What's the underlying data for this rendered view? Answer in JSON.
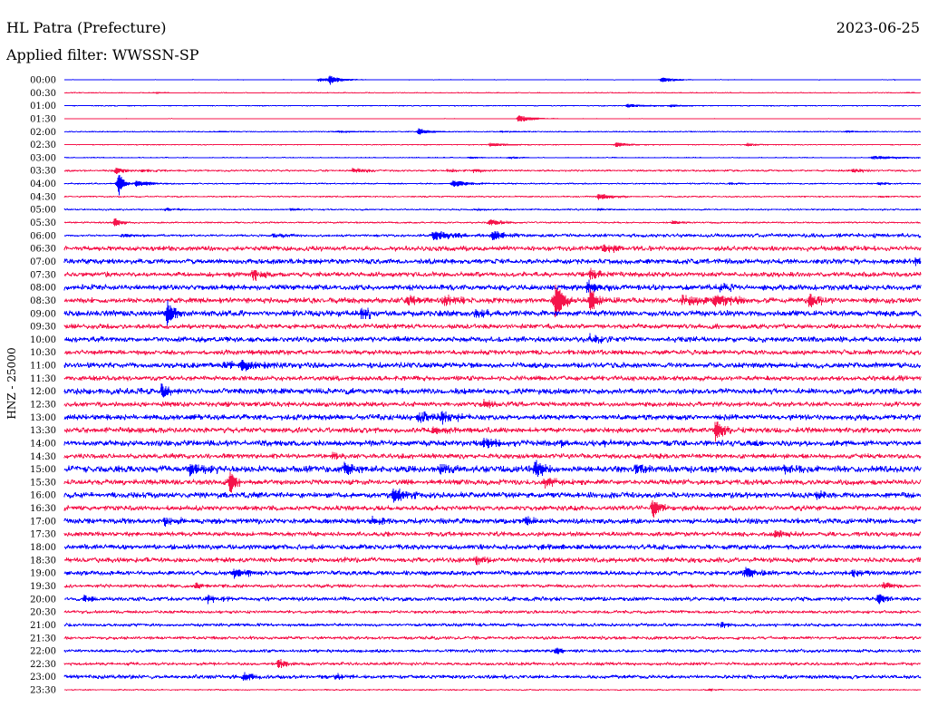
{
  "colors": {
    "trace_even": "#0000ff",
    "trace_odd": "#f5144b"
  },
  "chart_data": {
    "type": "line",
    "title": "HL Patra (Prefecture)",
    "date": "2023-06-25",
    "subtitle": "Applied filter: WWSSN-SP",
    "ylabel": "HNZ - 25000",
    "rows": [
      {
        "time": "00:00",
        "noise": 0.025,
        "events": [
          [
            8.9,
            0.15,
            0.6
          ],
          [
            9.3,
            0.35,
            0.3
          ],
          [
            20.9,
            0.2,
            0.6
          ]
        ]
      },
      {
        "time": "00:30",
        "noise": 0.015,
        "events": [
          [
            3.2,
            0.08,
            0.2
          ],
          [
            29.5,
            0.06,
            0.2
          ]
        ]
      },
      {
        "time": "01:00",
        "noise": 0.025,
        "events": [
          [
            19.7,
            0.15,
            0.8
          ],
          [
            21.2,
            0.1,
            0.4
          ]
        ]
      },
      {
        "time": "01:30",
        "noise": 0.02,
        "events": [
          [
            15.9,
            0.3,
            0.5
          ]
        ]
      },
      {
        "time": "02:00",
        "noise": 0.025,
        "events": [
          [
            5.4,
            0.07,
            0.4
          ],
          [
            9.6,
            0.1,
            0.5
          ],
          [
            12.4,
            0.3,
            0.4
          ],
          [
            15.3,
            0.08,
            0.5
          ],
          [
            27.4,
            0.12,
            0.3
          ]
        ]
      },
      {
        "time": "02:30",
        "noise": 0.03,
        "events": [
          [
            14.9,
            0.15,
            0.8
          ],
          [
            19.3,
            0.2,
            0.5
          ],
          [
            23.9,
            0.15,
            0.4
          ]
        ]
      },
      {
        "time": "03:00",
        "noise": 0.03,
        "events": [
          [
            14.2,
            0.1,
            0.4
          ],
          [
            15.6,
            0.1,
            0.4
          ],
          [
            28.3,
            0.15,
            1.0
          ]
        ]
      },
      {
        "time": "03:30",
        "noise": 0.08,
        "events": [
          [
            1.8,
            0.3,
            0.3
          ],
          [
            2.7,
            0.12,
            0.5
          ],
          [
            10.1,
            0.22,
            0.5
          ],
          [
            13.4,
            0.12,
            0.4
          ],
          [
            14.3,
            0.15,
            0.5
          ],
          [
            27.6,
            0.2,
            0.4
          ]
        ]
      },
      {
        "time": "04:00",
        "noise": 0.05,
        "events": [
          [
            1.9,
            1.1,
            0.15
          ],
          [
            2.5,
            0.25,
            0.6
          ],
          [
            13.6,
            0.28,
            0.6
          ],
          [
            23.3,
            0.12,
            0.3
          ],
          [
            28.5,
            0.12,
            0.5
          ]
        ]
      },
      {
        "time": "04:30",
        "noise": 0.06,
        "events": [
          [
            18.7,
            0.28,
            0.5
          ],
          [
            28.6,
            0.1,
            0.5
          ]
        ]
      },
      {
        "time": "05:00",
        "noise": 0.06,
        "events": [
          [
            3.5,
            0.12,
            0.5
          ],
          [
            7.9,
            0.12,
            0.5
          ],
          [
            14.4,
            0.1,
            0.5
          ],
          [
            18.7,
            0.1,
            0.5
          ]
        ]
      },
      {
        "time": "05:30",
        "noise": 0.07,
        "events": [
          [
            1.75,
            0.42,
            0.25
          ],
          [
            14.9,
            0.28,
            0.5
          ],
          [
            21.3,
            0.14,
            0.4
          ]
        ]
      },
      {
        "time": "06:00",
        "noise": [
          0.07,
          0.2
        ],
        "events": [
          [
            2.0,
            0.14,
            0.8
          ],
          [
            7.3,
            0.15,
            0.8
          ],
          [
            12.9,
            0.35,
            1.0
          ],
          [
            15.0,
            0.35,
            0.5
          ]
        ]
      },
      {
        "time": "06:30",
        "noise": 0.22,
        "events": [
          [
            18.9,
            0.35,
            0.4
          ]
        ]
      },
      {
        "time": "07:00",
        "noise": 0.23,
        "events": [
          [
            29.8,
            0.3,
            0.5
          ]
        ]
      },
      {
        "time": "07:30",
        "noise": 0.22,
        "events": [
          [
            6.6,
            0.5,
            0.3
          ],
          [
            18.4,
            0.35,
            0.4
          ]
        ]
      },
      {
        "time": "08:00",
        "noise": 0.25,
        "events": [
          [
            18.3,
            0.5,
            0.5
          ],
          [
            22.9,
            0.3,
            0.4
          ]
        ]
      },
      {
        "time": "08:30",
        "noise": 0.25,
        "events": [
          [
            12.0,
            0.3,
            0.6
          ],
          [
            13.3,
            0.3,
            0.6
          ],
          [
            17.2,
            1.7,
            0.25
          ],
          [
            18.4,
            0.9,
            0.3
          ],
          [
            21.6,
            0.35,
            1.5
          ],
          [
            22.8,
            0.35,
            0.5
          ],
          [
            26.1,
            0.7,
            0.3
          ]
        ]
      },
      {
        "time": "09:00",
        "noise": 0.26,
        "events": [
          [
            3.6,
            1.25,
            0.25
          ],
          [
            10.4,
            0.45,
            0.4
          ],
          [
            14.4,
            0.35,
            0.4
          ]
        ]
      },
      {
        "time": "09:30",
        "noise": 0.22,
        "events": []
      },
      {
        "time": "10:00",
        "noise": 0.24,
        "events": [
          [
            18.4,
            0.3,
            0.4
          ]
        ]
      },
      {
        "time": "10:30",
        "noise": 0.22,
        "events": []
      },
      {
        "time": "11:00",
        "noise": 0.25,
        "events": [
          [
            5.6,
            0.3,
            0.6
          ],
          [
            6.2,
            0.4,
            0.5
          ]
        ]
      },
      {
        "time": "11:30",
        "noise": 0.22,
        "events": []
      },
      {
        "time": "12:00",
        "noise": 0.26,
        "events": [
          [
            3.4,
            0.7,
            0.25
          ]
        ]
      },
      {
        "time": "12:30",
        "noise": 0.22,
        "events": [
          [
            14.7,
            0.3,
            0.4
          ]
        ]
      },
      {
        "time": "13:00",
        "noise": 0.25,
        "events": [
          [
            12.4,
            0.4,
            0.6
          ],
          [
            13.2,
            0.35,
            0.5
          ]
        ]
      },
      {
        "time": "13:30",
        "noise": 0.24,
        "events": [
          [
            12.9,
            0.35,
            0.5
          ],
          [
            22.8,
            0.9,
            0.3
          ]
        ]
      },
      {
        "time": "14:00",
        "noise": 0.26,
        "events": [
          [
            14.7,
            0.35,
            0.6
          ],
          [
            17.4,
            0.3,
            0.3
          ],
          [
            18.9,
            0.25,
            0.3
          ]
        ]
      },
      {
        "time": "14:30",
        "noise": 0.22,
        "events": [
          [
            9.4,
            0.25,
            0.4
          ]
        ]
      },
      {
        "time": "15:00",
        "noise": 0.3,
        "events": [
          [
            4.4,
            0.45,
            0.6
          ],
          [
            9.8,
            0.45,
            0.5
          ],
          [
            13.2,
            0.4,
            0.4
          ],
          [
            16.5,
            0.8,
            0.3
          ],
          [
            20.0,
            0.35,
            0.5
          ],
          [
            25.2,
            0.3,
            0.5
          ]
        ]
      },
      {
        "time": "15:30",
        "noise": 0.24,
        "events": [
          [
            5.8,
            1.2,
            0.2
          ],
          [
            16.8,
            0.35,
            0.6
          ]
        ]
      },
      {
        "time": "16:00",
        "noise": 0.25,
        "events": [
          [
            11.5,
            0.5,
            0.5
          ],
          [
            26.3,
            0.3,
            0.5
          ]
        ]
      },
      {
        "time": "16:30",
        "noise": 0.22,
        "events": [
          [
            20.6,
            0.7,
            0.3
          ]
        ]
      },
      {
        "time": "17:00",
        "noise": 0.24,
        "events": [
          [
            3.5,
            0.45,
            0.3
          ],
          [
            10.8,
            0.35,
            0.4
          ],
          [
            16.1,
            0.3,
            0.4
          ]
        ]
      },
      {
        "time": "17:30",
        "noise": 0.2,
        "events": [
          [
            24.9,
            0.3,
            0.4
          ]
        ]
      },
      {
        "time": "18:00",
        "noise": 0.22,
        "events": [
          [
            16.7,
            0.25,
            0.3
          ]
        ]
      },
      {
        "time": "18:30",
        "noise": 0.22,
        "events": [
          [
            14.4,
            0.3,
            0.4
          ]
        ]
      },
      {
        "time": "19:00",
        "noise": 0.2,
        "events": [
          [
            5.9,
            0.35,
            0.8
          ],
          [
            23.8,
            0.4,
            0.6
          ],
          [
            27.6,
            0.3,
            0.4
          ]
        ]
      },
      {
        "time": "19:30",
        "noise": 0.15,
        "events": [
          [
            4.6,
            0.3,
            0.3
          ],
          [
            28.7,
            0.35,
            0.3
          ]
        ]
      },
      {
        "time": "20:00",
        "noise": 0.18,
        "events": [
          [
            0.7,
            0.4,
            0.3
          ],
          [
            5.0,
            0.3,
            0.4
          ],
          [
            28.5,
            0.45,
            0.3
          ]
        ]
      },
      {
        "time": "20:30",
        "noise": 0.14,
        "events": []
      },
      {
        "time": "21:00",
        "noise": 0.14,
        "events": [
          [
            23.0,
            0.25,
            0.3
          ]
        ]
      },
      {
        "time": "21:30",
        "noise": 0.14,
        "events": []
      },
      {
        "time": "22:00",
        "noise": 0.14,
        "events": [
          [
            17.2,
            0.3,
            0.3
          ]
        ]
      },
      {
        "time": "22:30",
        "noise": 0.14,
        "events": [
          [
            7.5,
            0.55,
            0.2
          ]
        ]
      },
      {
        "time": "23:00",
        "noise": 0.17,
        "events": [
          [
            6.3,
            0.4,
            0.3
          ],
          [
            9.5,
            0.3,
            0.3
          ]
        ]
      },
      {
        "time": "23:30",
        "noise": 0.05,
        "events": [
          [
            22.6,
            0.12,
            0.3
          ]
        ]
      }
    ]
  }
}
